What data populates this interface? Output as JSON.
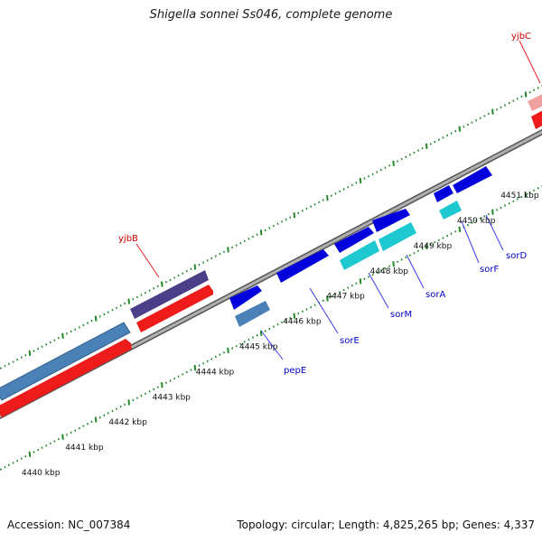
{
  "title": "Shigella sonnei Ss046, complete genome",
  "footer": {
    "accession": "Accession: NC_007384",
    "stats": "Topology: circular; Length: 4,825,265 bp; Genes: 4,337"
  },
  "colors": {
    "backbone": "#888888",
    "ticks": "#22882a",
    "gene_label": "#0000cc",
    "highlight_label": "#cc0000"
  },
  "scale_labels": [
    "4440 kbp",
    "4441 kbp",
    "4442 kbp",
    "4443 kbp",
    "4444 kbp",
    "4445 kbp",
    "4446 kbp",
    "4447 kbp",
    "4448 kbp",
    "4449 kbp",
    "4450 kbp",
    "4451 kbp"
  ],
  "gene_labels": [
    {
      "text": "yjbC",
      "color": "#cc0000"
    },
    {
      "text": "yjbB",
      "color": "#cc0000"
    },
    {
      "text": "pepE",
      "color": "#0000cc"
    },
    {
      "text": "sorE",
      "color": "#0000cc"
    },
    {
      "text": "sorM",
      "color": "#0000cc"
    },
    {
      "text": "sorA",
      "color": "#0000cc"
    },
    {
      "text": "sorF",
      "color": "#0000cc"
    },
    {
      "text": "sorD",
      "color": "#0000cc"
    }
  ]
}
